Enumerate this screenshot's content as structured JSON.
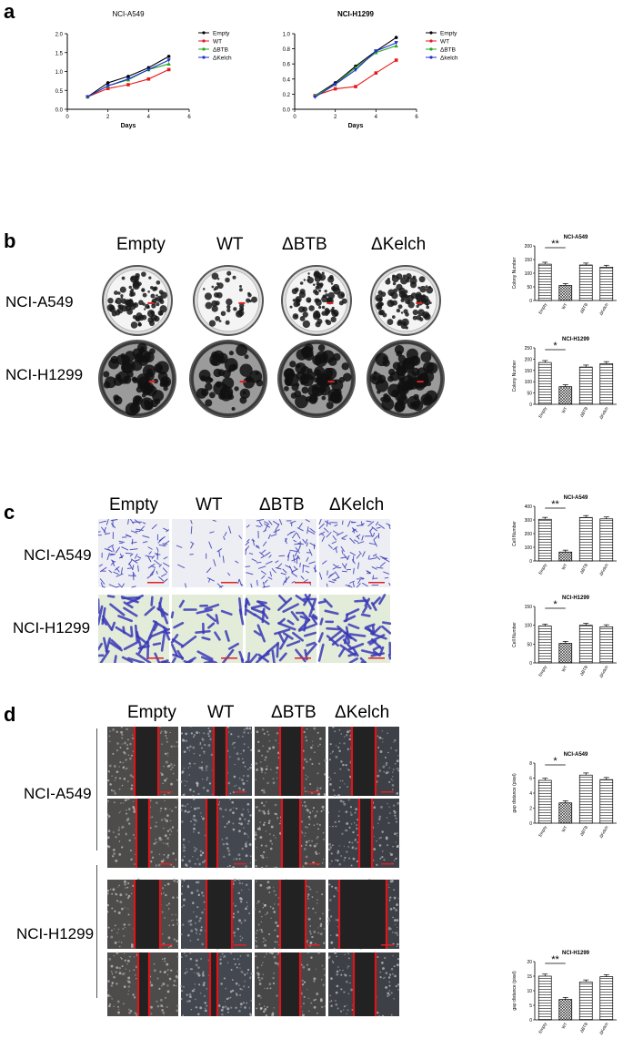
{
  "panel_letters": [
    "a",
    "b",
    "c",
    "d"
  ],
  "conditions": [
    "Empty",
    "WT",
    "ΔBTB",
    "ΔKelch"
  ],
  "cell_lines": [
    "NCI-A549",
    "NCI-H1299"
  ],
  "panel_a": {
    "charts": [
      {
        "title": "NCI-A549",
        "xlabel": "Days",
        "legend": [
          "Empty",
          "WT",
          "ΔBTB",
          "ΔKelch"
        ]
      },
      {
        "title": "NCI-H1299",
        "xlabel": "Days",
        "legend": [
          "Empty",
          "WT",
          "ΔBTB",
          "Δkelch"
        ]
      }
    ]
  },
  "colors": {
    "empty": "#000000",
    "wt": "#e8191a",
    "dbtb": "#22aa22",
    "dkelch": "#1f2fd0",
    "wound_line": "#e0141b",
    "crystal": "#3a3ab8"
  },
  "chart_data": [
    {
      "type": "line",
      "title": "NCI-A549",
      "xlabel": "Days",
      "ylabel": "",
      "x": [
        1,
        2,
        3,
        4,
        5
      ],
      "xlim": [
        0,
        6
      ],
      "ylim": [
        0,
        2.0
      ],
      "xticks": [
        "0",
        "2",
        "4",
        "6"
      ],
      "yticks": [
        "0.0",
        "0.5",
        "1.0",
        "1.5",
        "2.0"
      ],
      "legend_position": "top-right",
      "series": [
        {
          "name": "Empty",
          "values": [
            0.33,
            0.7,
            0.87,
            1.1,
            1.4
          ]
        },
        {
          "name": "WT",
          "values": [
            0.33,
            0.55,
            0.65,
            0.8,
            1.05
          ]
        },
        {
          "name": "ΔBTB",
          "values": [
            0.33,
            0.62,
            0.78,
            1.05,
            1.2
          ]
        },
        {
          "name": "ΔKelch",
          "values": [
            0.33,
            0.62,
            0.8,
            1.05,
            1.3
          ]
        }
      ]
    },
    {
      "type": "line",
      "title": "NCI-H1299",
      "xlabel": "Days",
      "ylabel": "",
      "x": [
        1,
        2,
        3,
        4,
        5
      ],
      "xlim": [
        0,
        6
      ],
      "ylim": [
        0,
        1.0
      ],
      "xticks": [
        "0",
        "2",
        "4",
        "6"
      ],
      "yticks": [
        "0.0",
        "0.2",
        "0.4",
        "0.6",
        "0.8",
        "1.0"
      ],
      "legend_position": "top-right",
      "series": [
        {
          "name": "Empty",
          "values": [
            0.18,
            0.35,
            0.57,
            0.77,
            0.95
          ]
        },
        {
          "name": "WT",
          "values": [
            0.18,
            0.27,
            0.3,
            0.48,
            0.65
          ]
        },
        {
          "name": "ΔBTB",
          "values": [
            0.18,
            0.33,
            0.55,
            0.75,
            0.84
          ]
        },
        {
          "name": "Δkelch",
          "values": [
            0.16,
            0.33,
            0.52,
            0.77,
            0.88
          ]
        }
      ]
    },
    {
      "type": "bar",
      "title": "NCI-A549",
      "ylabel": "Colony Number",
      "categories": [
        "Empty",
        "WT",
        "ΔBTB",
        "ΔKelch"
      ],
      "values": [
        133,
        55,
        130,
        122
      ],
      "ylim": [
        0,
        200
      ],
      "yticks": [
        "0",
        "50",
        "100",
        "150",
        "200"
      ],
      "significance": "**"
    },
    {
      "type": "bar",
      "title": "NCI-H1299",
      "ylabel": "Colony Number",
      "categories": [
        "Empty",
        "WT",
        "ΔBTB",
        "ΔKelch"
      ],
      "values": [
        185,
        78,
        165,
        180
      ],
      "ylim": [
        0,
        250
      ],
      "yticks": [
        "0",
        "50",
        "100",
        "150",
        "200",
        "250"
      ],
      "significance": "*"
    },
    {
      "type": "bar",
      "title": "NCI-A549",
      "ylabel": "Cell Number",
      "categories": [
        "Empty",
        "WT",
        "ΔBTB",
        "ΔKelch"
      ],
      "values": [
        305,
        65,
        318,
        308
      ],
      "ylim": [
        0,
        400
      ],
      "yticks": [
        "0",
        "100",
        "200",
        "300",
        "400"
      ],
      "significance": "**"
    },
    {
      "type": "bar",
      "title": "NCI-H1299",
      "ylabel": "Cell Number",
      "categories": [
        "Empty",
        "WT",
        "ΔBTB",
        "ΔKelch"
      ],
      "values": [
        98,
        52,
        100,
        96
      ],
      "ylim": [
        0,
        150
      ],
      "yticks": [
        "0",
        "50",
        "100",
        "150"
      ],
      "significance": "*"
    },
    {
      "type": "bar",
      "title": "NCI-A549",
      "ylabel": "gap distance (pixel)",
      "categories": [
        "Empty",
        "WT",
        "ΔBTB",
        "ΔKelch"
      ],
      "values": [
        5.7,
        2.7,
        6.4,
        5.8
      ],
      "ylim": [
        0,
        8
      ],
      "yticks": [
        "0",
        "2",
        "4",
        "6",
        "8"
      ],
      "significance": "*"
    },
    {
      "type": "bar",
      "title": "NCI-H1299",
      "ylabel": "gap distance (pixel)",
      "categories": [
        "Empty",
        "WT",
        "ΔBTB",
        "ΔKelch"
      ],
      "values": [
        15,
        7,
        13,
        14.8
      ],
      "ylim": [
        0,
        20
      ],
      "yticks": [
        "0",
        "5",
        "10",
        "15",
        "20"
      ],
      "significance": "**"
    }
  ]
}
